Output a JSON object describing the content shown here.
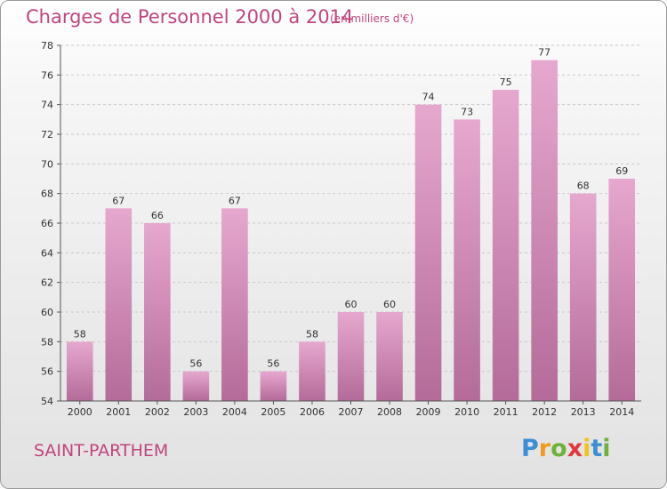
{
  "header": {
    "title": "Charges de Personnel 2000 à 2014",
    "unit": "(en milliers d'€)"
  },
  "footer": {
    "commune": "SAINT-PARTHEM",
    "logo": "Proxiti",
    "logo_letters": [
      {
        "ch": "P",
        "color": "#3b8fd6"
      },
      {
        "ch": "r",
        "color": "#f29a1d"
      },
      {
        "ch": "o",
        "color": "#6bb33a"
      },
      {
        "ch": "x",
        "color": "#e2383f"
      },
      {
        "ch": "i",
        "color": "#f2c21d"
      },
      {
        "ch": "t",
        "color": "#3b8fd6"
      },
      {
        "ch": "i",
        "color": "#6bb33a"
      }
    ]
  },
  "colors": {
    "bar_top": "#e6a8cf",
    "bar_bottom": "#b46b99",
    "accent": "#c0457e"
  },
  "chart_data": {
    "type": "bar",
    "title": "Charges de Personnel 2000 à 2014",
    "categories": [
      "2000",
      "2001",
      "2002",
      "2003",
      "2004",
      "2005",
      "2006",
      "2007",
      "2008",
      "2009",
      "2010",
      "2011",
      "2012",
      "2013",
      "2014"
    ],
    "values": [
      58,
      67,
      66,
      56,
      67,
      56,
      58,
      60,
      60,
      74,
      73,
      75,
      77,
      68,
      69
    ],
    "ylim": [
      54,
      78
    ],
    "yticks": [
      54,
      56,
      58,
      60,
      62,
      64,
      66,
      68,
      70,
      72,
      74,
      76,
      78
    ],
    "grid": true
  }
}
